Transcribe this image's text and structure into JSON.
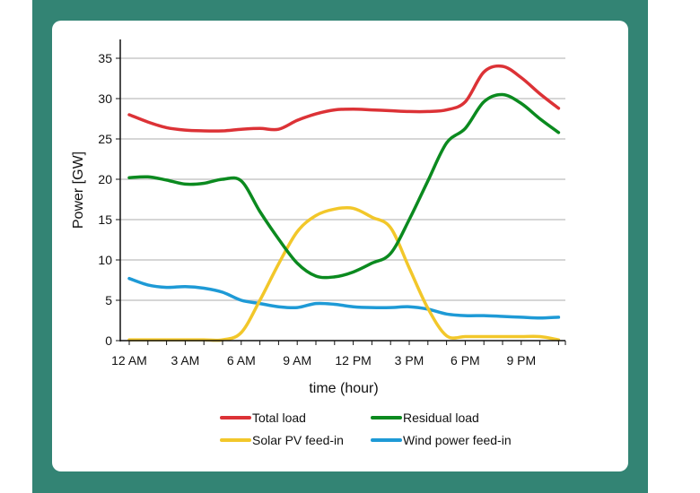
{
  "chart_data": {
    "type": "line",
    "title": "",
    "xlabel": "time (hour)",
    "ylabel": "Power [GW]",
    "xlim": [
      0,
      23
    ],
    "ylim": [
      0,
      35
    ],
    "grid": true,
    "legend_position": "bottom",
    "x_ticks": [
      {
        "value": 0,
        "label": "12 AM"
      },
      {
        "value": 3,
        "label": "3 AM"
      },
      {
        "value": 6,
        "label": "6 AM"
      },
      {
        "value": 9,
        "label": "9 AM"
      },
      {
        "value": 12,
        "label": "12 PM"
      },
      {
        "value": 15,
        "label": "3 PM"
      },
      {
        "value": 18,
        "label": "6 PM"
      },
      {
        "value": 21,
        "label": "9 PM"
      }
    ],
    "y_ticks": [
      0,
      5,
      10,
      15,
      20,
      25,
      30,
      35
    ],
    "x": [
      0,
      1,
      2,
      3,
      4,
      5,
      6,
      7,
      8,
      9,
      10,
      11,
      12,
      13,
      14,
      15,
      16,
      17,
      18,
      19,
      20,
      21,
      22,
      23
    ],
    "series": [
      {
        "name": "Total load",
        "color": "#dc3236",
        "values": [
          28.0,
          27.1,
          26.4,
          26.1,
          26.0,
          26.0,
          26.2,
          26.3,
          26.2,
          27.3,
          28.1,
          28.6,
          28.7,
          28.6,
          28.5,
          28.4,
          28.4,
          28.6,
          29.6,
          33.3,
          34.0,
          32.6,
          30.6,
          28.8
        ]
      },
      {
        "name": "Residual load",
        "color": "#0b8a1f",
        "values": [
          20.2,
          20.3,
          19.9,
          19.4,
          19.5,
          20.0,
          19.8,
          16.0,
          12.6,
          9.6,
          8.0,
          7.9,
          8.5,
          9.6,
          10.8,
          15.0,
          19.8,
          24.5,
          26.3,
          29.6,
          30.5,
          29.4,
          27.5,
          25.8
        ]
      },
      {
        "name": "Solar PV feed-in",
        "color": "#f2c72a",
        "values": [
          0.1,
          0.1,
          0.1,
          0.1,
          0.1,
          0.1,
          1.0,
          5.0,
          9.5,
          13.5,
          15.5,
          16.3,
          16.4,
          15.3,
          14.0,
          9.0,
          4.0,
          0.6,
          0.5,
          0.5,
          0.5,
          0.5,
          0.5,
          0.1
        ]
      },
      {
        "name": "Wind power feed-in",
        "color": "#1e9ad6",
        "values": [
          7.7,
          6.9,
          6.6,
          6.7,
          6.5,
          6.0,
          5.0,
          4.6,
          4.2,
          4.1,
          4.6,
          4.5,
          4.2,
          4.1,
          4.1,
          4.2,
          3.9,
          3.3,
          3.1,
          3.1,
          3.0,
          2.9,
          2.8,
          2.9
        ]
      }
    ]
  },
  "colors": {
    "frame": "#338474",
    "card": "#ffffff",
    "grid": "#c8c8c8",
    "axis": "#111111"
  }
}
